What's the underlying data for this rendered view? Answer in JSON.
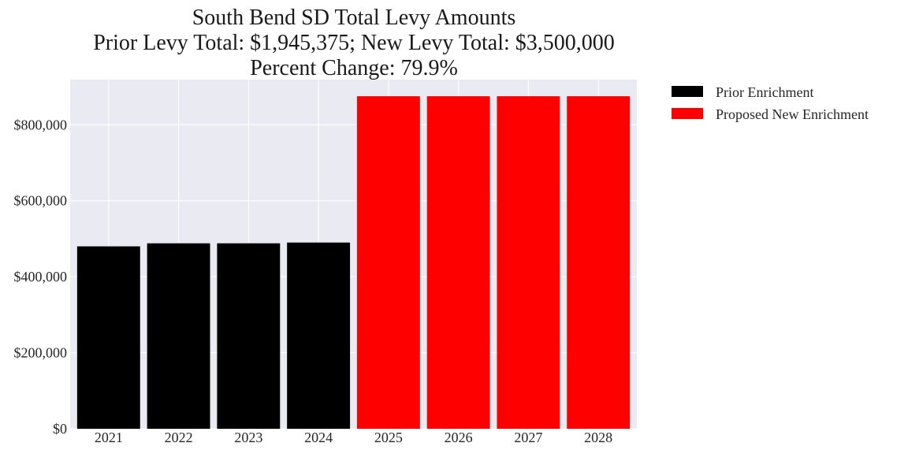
{
  "chart_data": {
    "type": "bar",
    "title_lines": [
      "South Bend SD Total Levy Amounts",
      "Prior Levy Total:  $1,945,375; New Levy Total: $3,500,000",
      "Percent Change: 79.9%"
    ],
    "xlabel": "",
    "ylabel": "",
    "categories": [
      "2021",
      "2022",
      "2023",
      "2024",
      "2025",
      "2026",
      "2027",
      "2028"
    ],
    "series": [
      {
        "name": "Prior Enrichment",
        "color": "#000000",
        "values": [
          480000,
          488000,
          488000,
          490000,
          null,
          null,
          null,
          null
        ]
      },
      {
        "name": "Proposed New Enrichment",
        "color": "#ff0000",
        "values": [
          null,
          null,
          null,
          null,
          875000,
          875000,
          875000,
          875000
        ]
      }
    ],
    "ylim": [
      0,
      918750
    ],
    "yticks": [
      0,
      200000,
      400000,
      600000,
      800000
    ],
    "ytick_labels": [
      "$0",
      "$200,000",
      "$400,000",
      "$600,000",
      "$800,000"
    ],
    "grid": true,
    "background": "#eaeaf2",
    "legend_position": "outside-top-right"
  }
}
